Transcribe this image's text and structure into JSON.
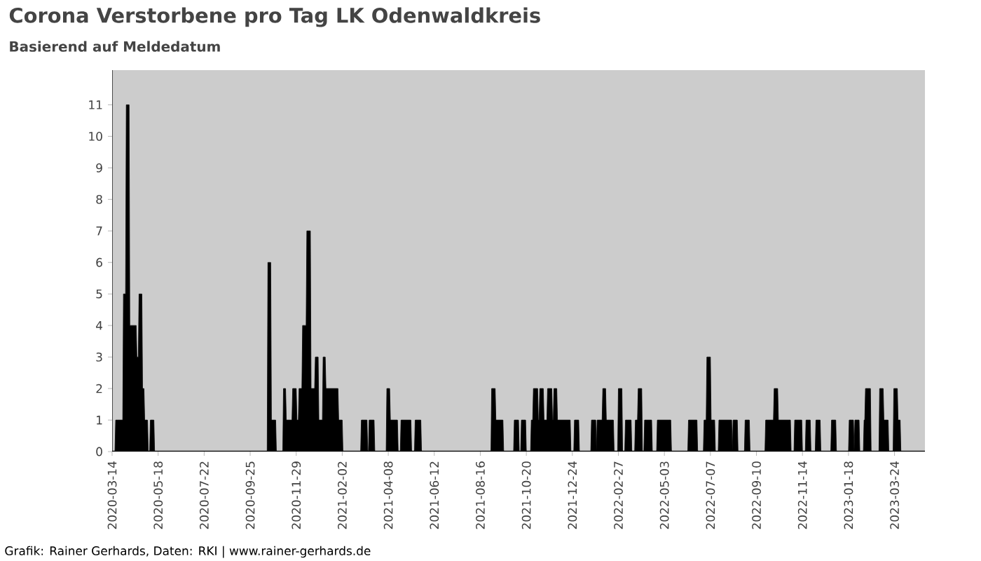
{
  "chart_data": {
    "type": "area",
    "title": "Corona Verstorbene pro Tag LK Odenwaldkreis",
    "subtitle": "Basierend auf Meldedatum",
    "annotations": [
      "Grafik: Rainer Gerhards, Daten: RKI | www.rainer-gerhards.de"
    ],
    "xlim": [
      "2020-03-14",
      "2023-05-06"
    ],
    "ylim": [
      0,
      12.1
    ],
    "xticks": [
      "2020-03-14",
      "2020-05-18",
      "2020-07-22",
      "2020-09-25",
      "2020-11-29",
      "2021-02-02",
      "2021-04-08",
      "2021-06-12",
      "2021-08-16",
      "2021-10-20",
      "2021-12-24",
      "2022-02-27",
      "2022-05-03",
      "2022-07-07",
      "2022-09-10",
      "2022-11-14",
      "2023-01-18",
      "2023-03-24"
    ],
    "yticks": [
      0,
      1,
      2,
      3,
      4,
      5,
      6,
      7,
      8,
      9,
      10,
      11
    ],
    "series": [
      {
        "color": "#000000",
        "x": [
          "2020-03-14",
          "2020-03-18",
          "2020-03-19",
          "2020-03-29",
          "2020-03-30",
          "2020-04-02",
          "2020-04-03",
          "2020-04-07",
          "2020-04-08",
          "2020-04-17",
          "2020-04-18",
          "2020-04-20",
          "2020-04-21",
          "2020-04-25",
          "2020-04-26",
          "2020-04-28",
          "2020-04-29",
          "2020-05-03",
          "2020-05-04",
          "2020-05-06",
          "2020-05-07",
          "2020-05-12",
          "2020-05-13",
          "2020-10-19",
          "2020-10-20",
          "2020-10-24",
          "2020-10-25",
          "2020-10-31",
          "2020-11-01",
          "2020-11-10",
          "2020-11-11",
          "2020-11-14",
          "2020-11-15",
          "2020-11-23",
          "2020-11-24",
          "2020-11-29",
          "2020-11-30",
          "2020-12-02",
          "2020-12-03",
          "2020-12-07",
          "2020-12-08",
          "2020-12-13",
          "2020-12-14",
          "2020-12-19",
          "2020-12-20",
          "2020-12-25",
          "2020-12-26",
          "2020-12-30",
          "2020-12-31",
          "2021-01-05",
          "2021-01-06",
          "2021-01-09",
          "2021-01-10",
          "2021-01-27",
          "2021-01-28",
          "2021-02-02",
          "2021-02-03",
          "2021-02-28",
          "2021-03-01",
          "2021-03-09",
          "2021-03-10",
          "2021-03-11",
          "2021-03-12",
          "2021-03-19",
          "2021-03-20",
          "2021-04-05",
          "2021-04-06",
          "2021-04-10",
          "2021-04-11",
          "2021-04-21",
          "2021-04-22",
          "2021-04-25",
          "2021-04-26",
          "2021-05-10",
          "2021-05-11",
          "2021-05-15",
          "2021-05-16",
          "2021-05-24",
          "2021-05-25",
          "2021-08-31",
          "2021-09-01",
          "2021-09-06",
          "2021-09-07",
          "2021-09-17",
          "2021-09-18",
          "2021-10-02",
          "2021-10-03",
          "2021-10-09",
          "2021-10-10",
          "2021-10-12",
          "2021-10-13",
          "2021-10-19",
          "2021-10-20",
          "2021-10-26",
          "2021-10-27",
          "2021-10-29",
          "2021-10-30",
          "2021-11-05",
          "2021-11-06",
          "2021-11-07",
          "2021-11-08",
          "2021-11-13",
          "2021-11-14",
          "2021-11-18",
          "2021-11-19",
          "2021-11-25",
          "2021-11-26",
          "2021-11-27",
          "2021-11-28",
          "2021-12-02",
          "2021-12-03",
          "2021-12-21",
          "2021-12-22",
          "2021-12-26",
          "2021-12-27",
          "2022-01-02",
          "2022-01-03",
          "2022-01-19",
          "2022-01-20",
          "2022-01-26",
          "2022-01-27",
          "2022-01-28",
          "2022-02-04",
          "2022-02-05",
          "2022-02-09",
          "2022-02-10",
          "2022-02-20",
          "2022-02-21",
          "2022-02-26",
          "2022-02-27",
          "2022-03-04",
          "2022-03-05",
          "2022-03-08",
          "2022-03-09",
          "2022-03-17",
          "2022-03-18",
          "2022-03-22",
          "2022-03-23",
          "2022-03-26",
          "2022-03-27",
          "2022-04-01",
          "2022-04-02",
          "2022-04-04",
          "2022-04-05",
          "2022-04-15",
          "2022-04-16",
          "2022-04-22",
          "2022-04-23",
          "2022-05-12",
          "2022-05-13",
          "2022-06-05",
          "2022-06-06",
          "2022-06-18",
          "2022-06-19",
          "2022-06-27",
          "2022-06-28",
          "2022-07-01",
          "2022-07-02",
          "2022-07-07",
          "2022-07-08",
          "2022-07-13",
          "2022-07-14",
          "2022-07-18",
          "2022-07-19",
          "2022-08-06",
          "2022-08-07",
          "2022-08-08",
          "2022-08-14",
          "2022-08-15",
          "2022-08-24",
          "2022-08-25",
          "2022-08-31",
          "2022-09-01",
          "2022-09-22",
          "2022-09-23",
          "2022-10-04",
          "2022-10-05",
          "2022-10-10",
          "2022-10-11",
          "2022-10-28",
          "2022-10-29",
          "2022-11-02",
          "2022-11-03",
          "2022-11-13",
          "2022-11-14",
          "2022-11-18",
          "2022-11-19",
          "2022-11-25",
          "2022-11-26",
          "2022-12-02",
          "2022-12-03",
          "2022-12-09",
          "2022-12-10",
          "2022-12-24",
          "2022-12-25",
          "2022-12-31",
          "2023-01-01",
          "2023-01-18",
          "2023-01-19",
          "2023-01-25",
          "2023-01-26",
          "2023-01-27",
          "2023-02-02",
          "2023-02-03",
          "2023-02-08",
          "2023-02-09",
          "2023-02-10",
          "2023-02-11",
          "2023-02-18",
          "2023-02-19",
          "2023-03-02",
          "2023-03-03",
          "2023-03-08",
          "2023-03-09",
          "2023-03-15",
          "2023-03-16",
          "2023-03-22",
          "2023-03-23",
          "2023-03-28",
          "2023-03-29",
          "2023-04-01",
          "2023-04-02",
          "2023-05-06"
        ],
        "values": [
          0,
          0,
          1,
          1,
          5,
          5,
          11,
          11,
          4,
          4,
          3,
          3,
          5,
          5,
          2,
          2,
          1,
          1,
          0,
          0,
          1,
          1,
          0,
          0,
          6,
          6,
          1,
          1,
          0,
          0,
          2,
          2,
          1,
          1,
          2,
          2,
          1,
          1,
          2,
          2,
          4,
          4,
          7,
          7,
          2,
          2,
          3,
          3,
          1,
          1,
          3,
          3,
          2,
          2,
          1,
          1,
          0,
          0,
          1,
          1,
          0,
          0,
          1,
          1,
          0,
          0,
          2,
          2,
          1,
          1,
          0,
          0,
          1,
          1,
          0,
          0,
          1,
          1,
          0,
          0,
          2,
          2,
          1,
          1,
          0,
          0,
          1,
          1,
          0,
          0,
          1,
          1,
          0,
          0,
          1,
          1,
          2,
          2,
          1,
          1,
          2,
          2,
          1,
          1,
          2,
          2,
          1,
          1,
          2,
          2,
          1,
          1,
          0,
          0,
          1,
          1,
          0,
          0,
          1,
          1,
          0,
          1,
          1,
          2,
          2,
          1,
          1,
          0,
          0,
          2,
          2,
          0,
          0,
          1,
          1,
          0,
          0,
          1,
          1,
          2,
          2,
          0,
          0,
          1,
          1,
          0,
          0,
          1,
          1,
          0,
          0,
          1,
          1,
          0,
          0,
          1,
          1,
          3,
          3,
          1,
          1,
          0,
          0,
          1,
          1,
          0,
          1,
          1,
          0,
          0,
          1,
          1,
          0,
          0,
          1,
          1,
          2,
          2,
          1,
          1,
          0,
          0,
          1,
          1,
          0,
          0,
          1,
          1,
          0,
          0,
          1,
          1,
          0,
          0,
          1,
          1,
          0,
          0,
          1,
          1,
          0,
          1,
          1,
          0,
          0,
          1,
          1,
          2,
          2,
          0,
          0,
          2,
          2,
          1,
          1,
          0,
          0,
          2,
          2,
          1,
          1,
          0,
          0
        ]
      }
    ]
  }
}
